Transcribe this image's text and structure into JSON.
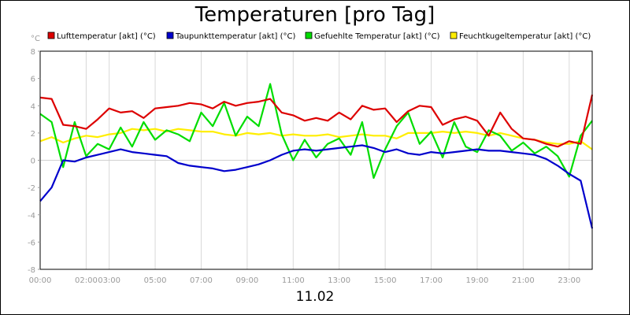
{
  "chart_data": {
    "type": "line",
    "title": "Temperaturen [pro Tag]",
    "footer": "11.02",
    "y_unit": "°C",
    "ylim": [
      -8,
      8
    ],
    "y_ticks": [
      "8",
      "6",
      "4",
      "2",
      "0",
      "-2",
      "-4",
      "-6",
      "-8"
    ],
    "xlim": [
      0,
      24
    ],
    "x_ticks": [
      {
        "v": 0,
        "label": "00:00"
      },
      {
        "v": 2,
        "label": "02:00"
      },
      {
        "v": 3,
        "label": "03:00"
      },
      {
        "v": 5,
        "label": "05:00"
      },
      {
        "v": 7,
        "label": "07:00"
      },
      {
        "v": 9,
        "label": "09:00"
      },
      {
        "v": 11,
        "label": "11:00"
      },
      {
        "v": 13,
        "label": "13:00"
      },
      {
        "v": 15,
        "label": "15:00"
      },
      {
        "v": 17,
        "label": "17:00"
      },
      {
        "v": 19,
        "label": "19:00"
      },
      {
        "v": 21,
        "label": "21:00"
      },
      {
        "v": 23,
        "label": "23:00"
      }
    ],
    "grid": "vertical-and-zero",
    "legend_position": "top",
    "series": [
      {
        "name": "Lufttemperatur [akt] (°C)",
        "color": "#dd0000",
        "x": [
          0,
          0.5,
          1,
          1.5,
          2,
          2.5,
          3,
          3.5,
          4,
          4.5,
          5,
          5.5,
          6,
          6.5,
          7,
          7.5,
          8,
          8.5,
          9,
          9.5,
          10,
          10.5,
          11,
          11.5,
          12,
          12.5,
          13,
          13.5,
          14,
          14.5,
          15,
          15.5,
          16,
          16.5,
          17,
          17.5,
          18,
          18.5,
          19,
          19.5,
          20,
          20.5,
          21,
          21.5,
          22,
          22.5,
          23,
          23.5,
          24
        ],
        "y": [
          4.6,
          4.5,
          2.6,
          2.5,
          2.3,
          3.0,
          3.8,
          3.5,
          3.6,
          3.1,
          3.8,
          3.9,
          4.0,
          4.2,
          4.1,
          3.8,
          4.3,
          4.0,
          4.2,
          4.3,
          4.5,
          3.5,
          3.3,
          2.9,
          3.1,
          2.9,
          3.5,
          3.0,
          4.0,
          3.7,
          3.8,
          2.8,
          3.6,
          4.0,
          3.9,
          2.6,
          3.0,
          3.2,
          2.9,
          1.8,
          3.5,
          2.3,
          1.6,
          1.5,
          1.2,
          1.0,
          1.4,
          1.2,
          4.8
        ]
      },
      {
        "name": "Taupunkttemperatur [akt] (°C)",
        "color": "#0000cc",
        "x": [
          0,
          0.5,
          1,
          1.5,
          2,
          2.5,
          3,
          3.5,
          4,
          4.5,
          5,
          5.5,
          6,
          6.5,
          7,
          7.5,
          8,
          8.5,
          9,
          9.5,
          10,
          10.5,
          11,
          11.5,
          12,
          12.5,
          13,
          13.5,
          14,
          14.5,
          15,
          15.5,
          16,
          16.5,
          17,
          17.5,
          18,
          18.5,
          19,
          19.5,
          20,
          20.5,
          21,
          21.5,
          22,
          22.5,
          23,
          23.5,
          24
        ],
        "y": [
          -3.0,
          -2.0,
          0.0,
          -0.1,
          0.2,
          0.4,
          0.6,
          0.8,
          0.6,
          0.5,
          0.4,
          0.3,
          -0.2,
          -0.4,
          -0.5,
          -0.6,
          -0.8,
          -0.7,
          -0.5,
          -0.3,
          0.0,
          0.4,
          0.7,
          0.8,
          0.7,
          0.8,
          0.9,
          1.0,
          1.1,
          0.9,
          0.6,
          0.8,
          0.5,
          0.4,
          0.6,
          0.5,
          0.6,
          0.7,
          0.8,
          0.7,
          0.7,
          0.6,
          0.5,
          0.4,
          0.1,
          -0.4,
          -1.0,
          -1.5,
          -5.0
        ]
      },
      {
        "name": "Gefuehlte Temperatur [akt] (°C)",
        "color": "#00dd00",
        "x": [
          0,
          0.5,
          1,
          1.5,
          2,
          2.5,
          3,
          3.5,
          4,
          4.5,
          5,
          5.5,
          6,
          6.5,
          7,
          7.5,
          8,
          8.5,
          9,
          9.5,
          10,
          10.5,
          11,
          11.5,
          12,
          12.5,
          13,
          13.5,
          14,
          14.5,
          15,
          15.5,
          16,
          16.5,
          17,
          17.5,
          18,
          18.5,
          19,
          19.5,
          20,
          20.5,
          21,
          21.5,
          22,
          22.5,
          23,
          23.5,
          24
        ],
        "y": [
          3.4,
          2.8,
          -0.5,
          2.8,
          0.3,
          1.2,
          0.8,
          2.4,
          1.0,
          2.8,
          1.5,
          2.2,
          1.9,
          1.4,
          3.5,
          2.5,
          4.2,
          1.8,
          3.2,
          2.5,
          5.6,
          1.9,
          0.0,
          1.5,
          0.2,
          1.2,
          1.6,
          0.4,
          2.8,
          -1.3,
          0.8,
          2.5,
          3.5,
          1.2,
          2.1,
          0.2,
          2.8,
          1.0,
          0.6,
          2.2,
          1.8,
          0.7,
          1.3,
          0.5,
          1.0,
          0.3,
          -1.2,
          1.8,
          2.9
        ]
      },
      {
        "name": "Feuchtkugeltemperatur [akt] (°C)",
        "color": "#ffee00",
        "x": [
          0,
          0.5,
          1,
          1.5,
          2,
          2.5,
          3,
          3.5,
          4,
          4.5,
          5,
          5.5,
          6,
          6.5,
          7,
          7.5,
          8,
          8.5,
          9,
          9.5,
          10,
          10.5,
          11,
          11.5,
          12,
          12.5,
          13,
          13.5,
          14,
          14.5,
          15,
          15.5,
          16,
          16.5,
          17,
          17.5,
          18,
          18.5,
          19,
          19.5,
          20,
          20.5,
          21,
          21.5,
          22,
          22.5,
          23,
          23.5,
          24
        ],
        "y": [
          1.4,
          1.7,
          1.3,
          1.6,
          1.8,
          1.7,
          1.9,
          2.0,
          2.3,
          2.2,
          2.3,
          2.1,
          2.3,
          2.2,
          2.1,
          2.1,
          1.9,
          1.8,
          2.0,
          1.9,
          2.0,
          1.8,
          1.9,
          1.8,
          1.8,
          1.9,
          1.7,
          1.8,
          1.9,
          1.8,
          1.8,
          1.6,
          2.0,
          2.0,
          2.0,
          2.1,
          2.0,
          2.1,
          2.0,
          1.8,
          2.0,
          1.8,
          1.6,
          1.5,
          1.3,
          1.2,
          1.2,
          1.4,
          0.8
        ]
      }
    ]
  }
}
